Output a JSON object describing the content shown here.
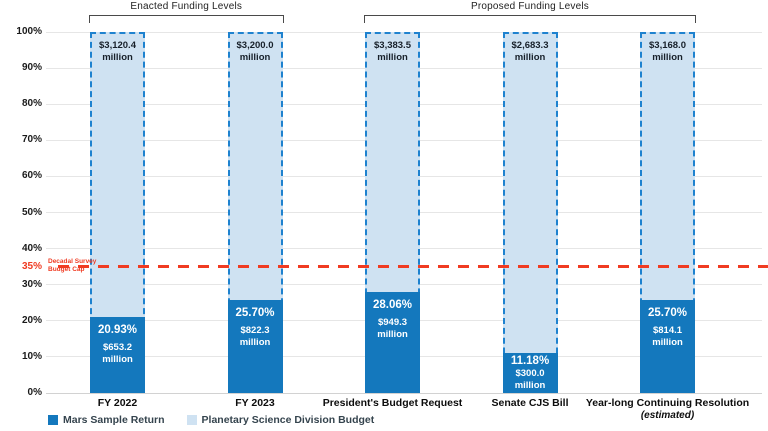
{
  "chart_data": {
    "type": "bar",
    "subtype": "stacked-percentage-column",
    "unit": "million",
    "y_axis": {
      "ticks": [
        "0%",
        "10%",
        "20%",
        "30%",
        "40%",
        "50%",
        "60%",
        "70%",
        "80%",
        "90%",
        "100%"
      ],
      "range": [
        0,
        100
      ],
      "grid": true
    },
    "categories": [
      {
        "label": "FY 2022",
        "sublabel": ""
      },
      {
        "label": "FY 2023",
        "sublabel": ""
      },
      {
        "label": "President's Budget Request",
        "sublabel": ""
      },
      {
        "label": "Senate CJS Bill",
        "sublabel": ""
      },
      {
        "label": "Year-long Continuing Resolution",
        "sublabel": "(estimated)"
      }
    ],
    "bars": [
      {
        "total": "$3,120.4",
        "pct": 20.93,
        "pct_label": "20.93%",
        "value": "$653.2"
      },
      {
        "total": "$3,200.0",
        "pct": 25.7,
        "pct_label": "25.70%",
        "value": "$822.3"
      },
      {
        "total": "$3,383.5",
        "pct": 28.06,
        "pct_label": "28.06%",
        "value": "$949.3"
      },
      {
        "total": "$2,683.3",
        "pct": 11.18,
        "pct_label": "11.18%",
        "value": "$300.0"
      },
      {
        "total": "$3,168.0",
        "pct": 25.7,
        "pct_label": "25.70%",
        "value": "$814.1"
      }
    ],
    "groups": [
      {
        "label": "Enacted Funding Levels",
        "bars": [
          0,
          1
        ]
      },
      {
        "label": "Proposed Funding Levels",
        "bars": [
          2,
          4
        ]
      }
    ],
    "cap_line": {
      "pct": 35,
      "axis_label": "35%",
      "line1": "Decadal Survey",
      "line2": "Budget Cap",
      "color": "#f03b22"
    },
    "series": [
      {
        "name": "Mars Sample Return",
        "color": "#1478bd"
      },
      {
        "name": "Planetary Science Division Budget",
        "color": "#cfe2f2"
      }
    ],
    "colors": {
      "bar_border": "#1e82cf",
      "gridline": "#e6e6e6",
      "text_dark": "#17202a",
      "legend_text": "#35444e"
    },
    "legend_position": "bottom-left"
  }
}
